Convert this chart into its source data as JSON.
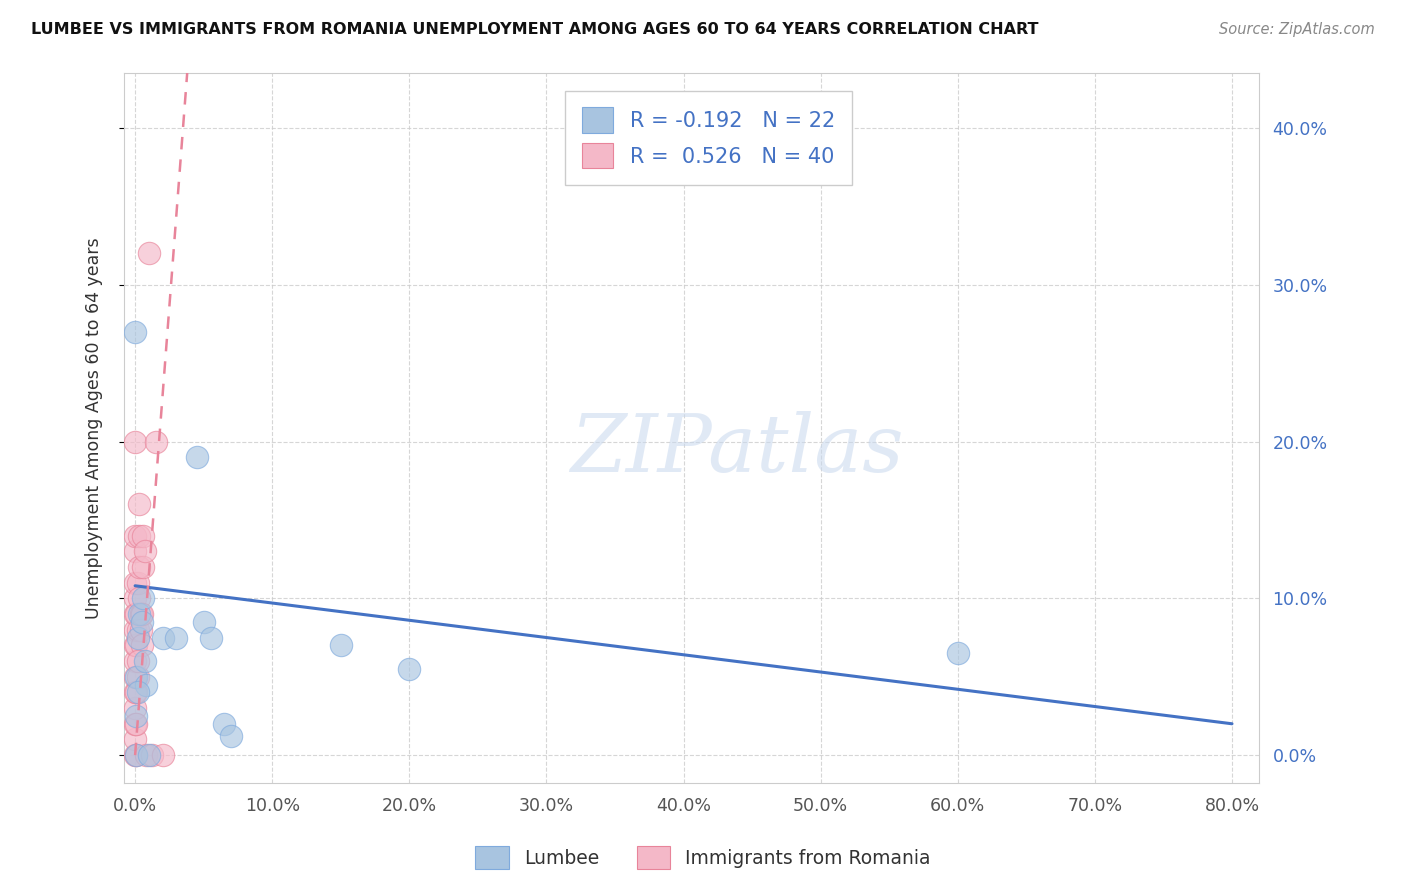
{
  "title": "LUMBEE VS IMMIGRANTS FROM ROMANIA UNEMPLOYMENT AMONG AGES 60 TO 64 YEARS CORRELATION CHART",
  "source": "Source: ZipAtlas.com",
  "ylabel": "Unemployment Among Ages 60 to 64 years",
  "xlim": [
    -0.008,
    0.82
  ],
  "ylim": [
    -0.018,
    0.435
  ],
  "xticks": [
    0.0,
    0.1,
    0.2,
    0.3,
    0.4,
    0.5,
    0.6,
    0.7,
    0.8
  ],
  "yticks": [
    0.0,
    0.1,
    0.2,
    0.3,
    0.4
  ],
  "lumbee_color": "#a8c4e0",
  "lumbee_edge": "#7faadd",
  "romania_color": "#f4b8c8",
  "romania_edge": "#e8849a",
  "trend_blue": "#4472c4",
  "trend_pink": "#e8849a",
  "lumbee_R": -0.192,
  "lumbee_N": 22,
  "romania_R": 0.526,
  "romania_N": 40,
  "lumbee_label": "Lumbee",
  "romania_label": "Immigrants from Romania",
  "watermark": "ZIPatlas",
  "legend_r_color": "#4472c4",
  "legend_n_color": "#4472c4",
  "blue_trend_x": [
    0.0,
    0.8
  ],
  "blue_trend_y": [
    0.108,
    0.02
  ],
  "pink_trend_x": [
    0.0,
    0.038
  ],
  "pink_trend_y": [
    0.0,
    0.435
  ],
  "lumbee_x": [
    0.0,
    0.001,
    0.001,
    0.002,
    0.003,
    0.005,
    0.006,
    0.007,
    0.008,
    0.02,
    0.03,
    0.045,
    0.05,
    0.055,
    0.065,
    0.07,
    0.15,
    0.2,
    0.6,
    0.001,
    0.002,
    0.01
  ],
  "lumbee_y": [
    0.27,
    0.0,
    0.05,
    0.075,
    0.09,
    0.085,
    0.1,
    0.06,
    0.045,
    0.075,
    0.075,
    0.19,
    0.085,
    0.075,
    0.02,
    0.012,
    0.07,
    0.055,
    0.065,
    0.025,
    0.04,
    0.0
  ],
  "romania_x": [
    0.0,
    0.0,
    0.0,
    0.0,
    0.0,
    0.0,
    0.0,
    0.0,
    0.0,
    0.0,
    0.0,
    0.0,
    0.0,
    0.0,
    0.0,
    0.001,
    0.001,
    0.001,
    0.001,
    0.002,
    0.002,
    0.002,
    0.003,
    0.003,
    0.003,
    0.004,
    0.004,
    0.005,
    0.005,
    0.006,
    0.006,
    0.007,
    0.008,
    0.01,
    0.012,
    0.015,
    0.02,
    0.001,
    0.002,
    0.003
  ],
  "romania_y": [
    0.0,
    0.01,
    0.02,
    0.03,
    0.04,
    0.05,
    0.06,
    0.07,
    0.08,
    0.09,
    0.1,
    0.11,
    0.13,
    0.14,
    0.2,
    0.0,
    0.04,
    0.07,
    0.09,
    0.05,
    0.08,
    0.11,
    0.1,
    0.12,
    0.14,
    0.09,
    0.08,
    0.07,
    0.09,
    0.12,
    0.14,
    0.13,
    0.0,
    0.32,
    0.0,
    0.2,
    0.0,
    0.02,
    0.06,
    0.16
  ]
}
